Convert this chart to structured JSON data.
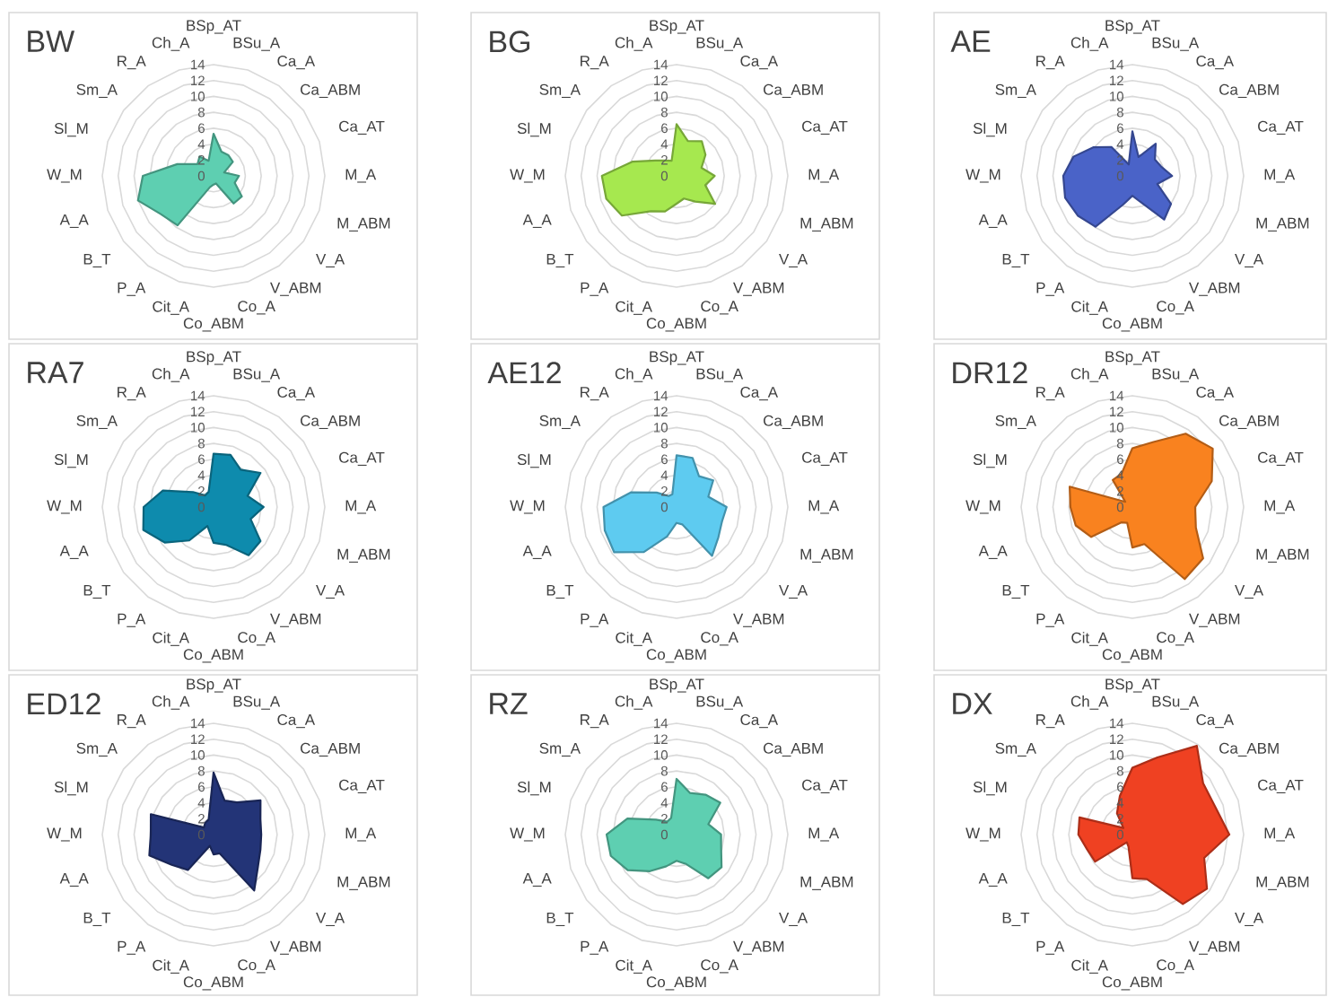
{
  "chart_data": [
    {
      "type": "radar",
      "title": "BW",
      "categories": [
        "BSp_AT",
        "BSu_A",
        "Ca_A",
        "Ca_ABM",
        "Ca_AT",
        "M_A",
        "M_ABM",
        "V_A",
        "V_ABM",
        "Co_A",
        "Co_ABM",
        "Cit_A",
        "P_A",
        "B_T",
        "A_A",
        "W_M",
        "Sl_M",
        "Sm_A",
        "R_A",
        "Ch_A"
      ],
      "series": [
        {
          "color": "#5ecfb1",
          "values": [
            5.3,
            3.2,
            3.2,
            3.0,
            1.4,
            3.2,
            2.8,
            4.4,
            4.3,
            1.0,
            1.1,
            1.5,
            7.7,
            8.2,
            10.0,
            8.9,
            4.8,
            2.5,
            3.0,
            2.0
          ]
        }
      ],
      "ylim": [
        0,
        14
      ],
      "yticks": [
        0,
        2,
        4,
        6,
        8,
        10,
        12,
        14
      ],
      "grid": true
    },
    {
      "type": "radar",
      "title": "BG",
      "categories": [
        "BSp_AT",
        "BSu_A",
        "Ca_A",
        "Ca_ABM",
        "Ca_AT",
        "M_A",
        "M_ABM",
        "V_A",
        "V_ABM",
        "Co_A",
        "Co_ABM",
        "Cit_A",
        "P_A",
        "B_T",
        "A_A",
        "W_M",
        "Sl_M",
        "Sm_A",
        "R_A",
        "Ch_A"
      ],
      "series": [
        {
          "color": "#a6e84f",
          "values": [
            6.5,
            4.6,
            5.4,
            4.5,
            3.3,
            4.8,
            3.8,
            6.0,
            4.0,
            3.0,
            3.5,
            4.7,
            5.5,
            8.5,
            9.3,
            9.4,
            5.8,
            3.3,
            2.4,
            2.0
          ]
        }
      ],
      "ylim": [
        0,
        14
      ],
      "yticks": [
        0,
        2,
        4,
        6,
        8,
        10,
        12,
        14
      ],
      "grid": true
    },
    {
      "type": "radar",
      "title": "AE",
      "categories": [
        "BSp_AT",
        "BSu_A",
        "Ca_A",
        "Ca_ABM",
        "Ca_AT",
        "M_A",
        "M_ABM",
        "V_A",
        "V_ABM",
        "Co_A",
        "Co_ABM",
        "Cit_A",
        "P_A",
        "B_T",
        "A_A",
        "W_M",
        "Sl_M",
        "Sm_A",
        "R_A",
        "Ch_A"
      ],
      "series": [
        {
          "color": "#4a63c8",
          "values": [
            5.6,
            2.5,
            5.0,
            3.5,
            3.8,
            5.0,
            3.3,
            6.0,
            6.8,
            3.5,
            2.5,
            3.8,
            7.9,
            8.5,
            8.9,
            8.7,
            7.8,
            6.1,
            4.5,
            1.5
          ]
        }
      ],
      "ylim": [
        0,
        14
      ],
      "yticks": [
        0,
        2,
        4,
        6,
        8,
        10,
        12,
        14
      ],
      "grid": true
    },
    {
      "type": "radar",
      "title": "RA7",
      "categories": [
        "BSp_AT",
        "BSu_A",
        "Ca_A",
        "Ca_ABM",
        "Ca_AT",
        "M_A",
        "M_ABM",
        "V_A",
        "V_ABM",
        "Co_A",
        "Co_ABM",
        "Cit_A",
        "P_A",
        "B_T",
        "A_A",
        "W_M",
        "Sl_M",
        "Sm_A",
        "R_A",
        "Ch_A"
      ],
      "series": [
        {
          "color": "#0e8bad",
          "values": [
            6.7,
            6.9,
            5.8,
            7.3,
            4.5,
            6.3,
            4.9,
            7.3,
            7.5,
            5.0,
            4.5,
            2.5,
            5.2,
            7.6,
            9.3,
            8.8,
            6.7,
            3.2,
            1.8,
            2.0
          ]
        }
      ],
      "ylim": [
        0,
        14
      ],
      "yticks": [
        0,
        2,
        4,
        6,
        8,
        10,
        12,
        14
      ],
      "grid": true
    },
    {
      "type": "radar",
      "title": "AE12",
      "categories": [
        "BSp_AT",
        "BSu_A",
        "Ca_A",
        "Ca_ABM",
        "Ca_AT",
        "M_A",
        "M_ABM",
        "V_A",
        "V_ABM",
        "Co_A",
        "Co_ABM",
        "Cit_A",
        "P_A",
        "B_T",
        "A_A",
        "W_M",
        "Sl_M",
        "Sm_A",
        "R_A",
        "Ch_A"
      ],
      "series": [
        {
          "color": "#5ecbf0",
          "values": [
            6.5,
            6.5,
            4.8,
            5.7,
            4.2,
            6.3,
            6.0,
            6.5,
            7.6,
            2.3,
            2.0,
            3.9,
            7.0,
            9.7,
            9.5,
            9.2,
            6.0,
            3.1,
            1.7,
            1.7
          ]
        }
      ],
      "ylim": [
        0,
        14
      ],
      "yticks": [
        0,
        2,
        4,
        6,
        8,
        10,
        12,
        14
      ],
      "grid": true
    },
    {
      "type": "radar",
      "title": "DR12",
      "categories": [
        "BSp_AT",
        "BSu_A",
        "Ca_A",
        "Ca_ABM",
        "Ca_AT",
        "M_A",
        "M_ABM",
        "V_A",
        "V_ABM",
        "Co_A",
        "Co_ABM",
        "Cit_A",
        "P_A",
        "B_T",
        "A_A",
        "W_M",
        "Sl_M",
        "Sm_A",
        "R_A",
        "Ch_A"
      ],
      "series": [
        {
          "color": "#f9821f",
          "values": [
            7.4,
            8.6,
            11.4,
            12.5,
            10.5,
            7.9,
            8.4,
            11.0,
            11.2,
            4.9,
            5.1,
            2.1,
            2.4,
            6.4,
            7.5,
            7.8,
            8.3,
            1.1,
            4.2,
            4.4
          ]
        }
      ],
      "ylim": [
        0,
        14
      ],
      "yticks": [
        0,
        2,
        4,
        6,
        8,
        10,
        12,
        14
      ],
      "grid": true
    },
    {
      "type": "radar",
      "title": "ED12",
      "categories": [
        "BSp_AT",
        "BSu_A",
        "Ca_A",
        "Ca_ABM",
        "Ca_AT",
        "M_A",
        "M_ABM",
        "V_A",
        "V_ABM",
        "Co_A",
        "Co_ABM",
        "Cit_A",
        "P_A",
        "B_T",
        "A_A",
        "W_M",
        "Sl_M",
        "Sm_A",
        "R_A",
        "Ch_A"
      ],
      "series": [
        {
          "color": "#233477",
          "values": [
            7.8,
            4.5,
            5.0,
            7.3,
            6.2,
            6.0,
            6.2,
            6.9,
            8.7,
            2.5,
            2.5,
            1.5,
            5.5,
            6.5,
            8.5,
            7.9,
            8.3,
            1.5,
            1.8,
            2.0
          ]
        }
      ],
      "ylim": [
        0,
        14
      ],
      "yticks": [
        0,
        2,
        4,
        6,
        8,
        10,
        12,
        14
      ],
      "grid": true
    },
    {
      "type": "radar",
      "title": "RZ",
      "categories": [
        "BSp_AT",
        "BSu_A",
        "Ca_A",
        "Ca_ABM",
        "Ca_AT",
        "M_A",
        "M_ABM",
        "V_A",
        "V_ABM",
        "Co_A",
        "Co_ABM",
        "Cit_A",
        "P_A",
        "B_T",
        "A_A",
        "W_M",
        "Sl_M",
        "Sm_A",
        "R_A",
        "Ch_A"
      ],
      "series": [
        {
          "color": "#5ecfb1",
          "values": [
            7.0,
            5.5,
            6.2,
            6.8,
            4.2,
            5.6,
            5.9,
            7.0,
            6.8,
            3.9,
            3.3,
            4.2,
            5.7,
            7.6,
            8.7,
            8.8,
            6.5,
            3.2,
            2.0,
            2.2
          ]
        }
      ],
      "ylim": [
        0,
        14
      ],
      "yticks": [
        0,
        2,
        4,
        6,
        8,
        10,
        12,
        14
      ],
      "grid": true
    },
    {
      "type": "radar",
      "title": "DX",
      "categories": [
        "BSp_AT",
        "BSu_A",
        "Ca_A",
        "Ca_ABM",
        "Ca_AT",
        "M_A",
        "M_ABM",
        "V_A",
        "V_ABM",
        "Co_A",
        "Co_ABM",
        "Cit_A",
        "P_A",
        "B_T",
        "A_A",
        "W_M",
        "Sl_M",
        "Sm_A",
        "R_A",
        "Ch_A"
      ],
      "series": [
        {
          "color": "#ef4122",
          "values": [
            8.4,
            10.2,
            13.8,
            11.0,
            11.0,
            12.2,
            9.5,
            11.6,
            10.8,
            5.9,
            5.5,
            1.6,
            1.2,
            5.8,
            6.0,
            6.8,
            7.0,
            1.4,
            3.3,
            5.1
          ]
        }
      ],
      "ylim": [
        0,
        14
      ],
      "yticks": [
        0,
        2,
        4,
        6,
        8,
        10,
        12,
        14
      ],
      "grid": true
    }
  ]
}
